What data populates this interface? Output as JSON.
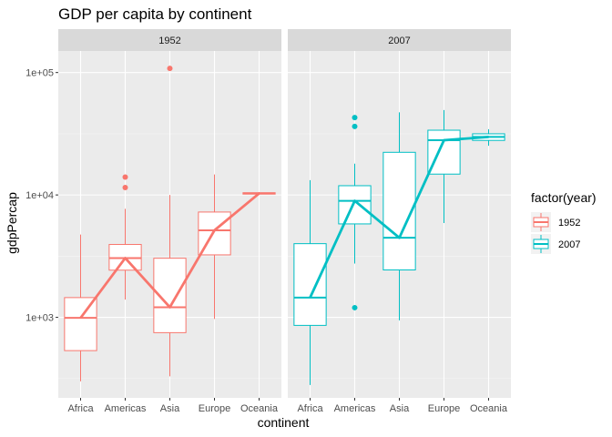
{
  "chart_data": {
    "type": "box",
    "title": "GDP per capita by continent",
    "xlabel": "continent",
    "ylabel": "gdpPercap",
    "y_scale": "log10",
    "ylim": [
      220,
      150000
    ],
    "y_ticks": [
      {
        "value": 1000,
        "label": "1e+03"
      },
      {
        "value": 10000,
        "label": "1e+04"
      },
      {
        "value": 100000,
        "label": "1e+05"
      }
    ],
    "categories": [
      "Africa",
      "Americas",
      "Asia",
      "Europe",
      "Oceania"
    ],
    "grid": true,
    "legend": {
      "title": "factor(year)",
      "placement": "right",
      "entries": [
        {
          "label": "1952",
          "color": "#F8766D"
        },
        {
          "label": "2007",
          "color": "#00BFC4"
        }
      ]
    },
    "panels": [
      {
        "strip": "1952",
        "color": "#F8766D",
        "boxes": [
          {
            "category": "Africa",
            "lower_whisker": 300,
            "q1": 535,
            "median": 990,
            "q3": 1450,
            "upper_whisker": 4750,
            "outliers": []
          },
          {
            "category": "Americas",
            "lower_whisker": 1400,
            "q1": 2430,
            "median": 3050,
            "q3": 3940,
            "upper_whisker": 7700,
            "outliers": [
              11500,
              14000
            ]
          },
          {
            "category": "Asia",
            "lower_whisker": 330,
            "q1": 750,
            "median": 1210,
            "q3": 3040,
            "upper_whisker": 10000,
            "outliers": [
              108000
            ]
          },
          {
            "category": "Europe",
            "lower_whisker": 970,
            "q1": 3240,
            "median": 5140,
            "q3": 7250,
            "upper_whisker": 14700,
            "outliers": []
          },
          {
            "category": "Oceania",
            "lower_whisker": 10040,
            "q1": 10160,
            "median": 10300,
            "q3": 10420,
            "upper_whisker": 10560,
            "outliers": []
          }
        ],
        "median_line": [
          990,
          3050,
          1210,
          5140,
          10300
        ]
      },
      {
        "strip": "2007",
        "color": "#00BFC4",
        "boxes": [
          {
            "category": "Africa",
            "lower_whisker": 280,
            "q1": 860,
            "median": 1450,
            "q3": 4000,
            "upper_whisker": 13200,
            "outliers": []
          },
          {
            "category": "Americas",
            "lower_whisker": 2750,
            "q1": 5800,
            "median": 8950,
            "q3": 11900,
            "upper_whisker": 18000,
            "outliers": [
              1200,
              36300,
              42900
            ]
          },
          {
            "category": "Asia",
            "lower_whisker": 945,
            "q1": 2440,
            "median": 4470,
            "q3": 22300,
            "upper_whisker": 47300,
            "outliers": []
          },
          {
            "category": "Europe",
            "lower_whisker": 5900,
            "q1": 14800,
            "median": 28000,
            "q3": 33800,
            "upper_whisker": 49400,
            "outliers": []
          },
          {
            "category": "Oceania",
            "lower_whisker": 25200,
            "q1": 27900,
            "median": 29800,
            "q3": 31600,
            "upper_whisker": 34400,
            "outliers": []
          }
        ],
        "median_line": [
          1450,
          8950,
          4470,
          28000,
          29800
        ]
      }
    ]
  }
}
